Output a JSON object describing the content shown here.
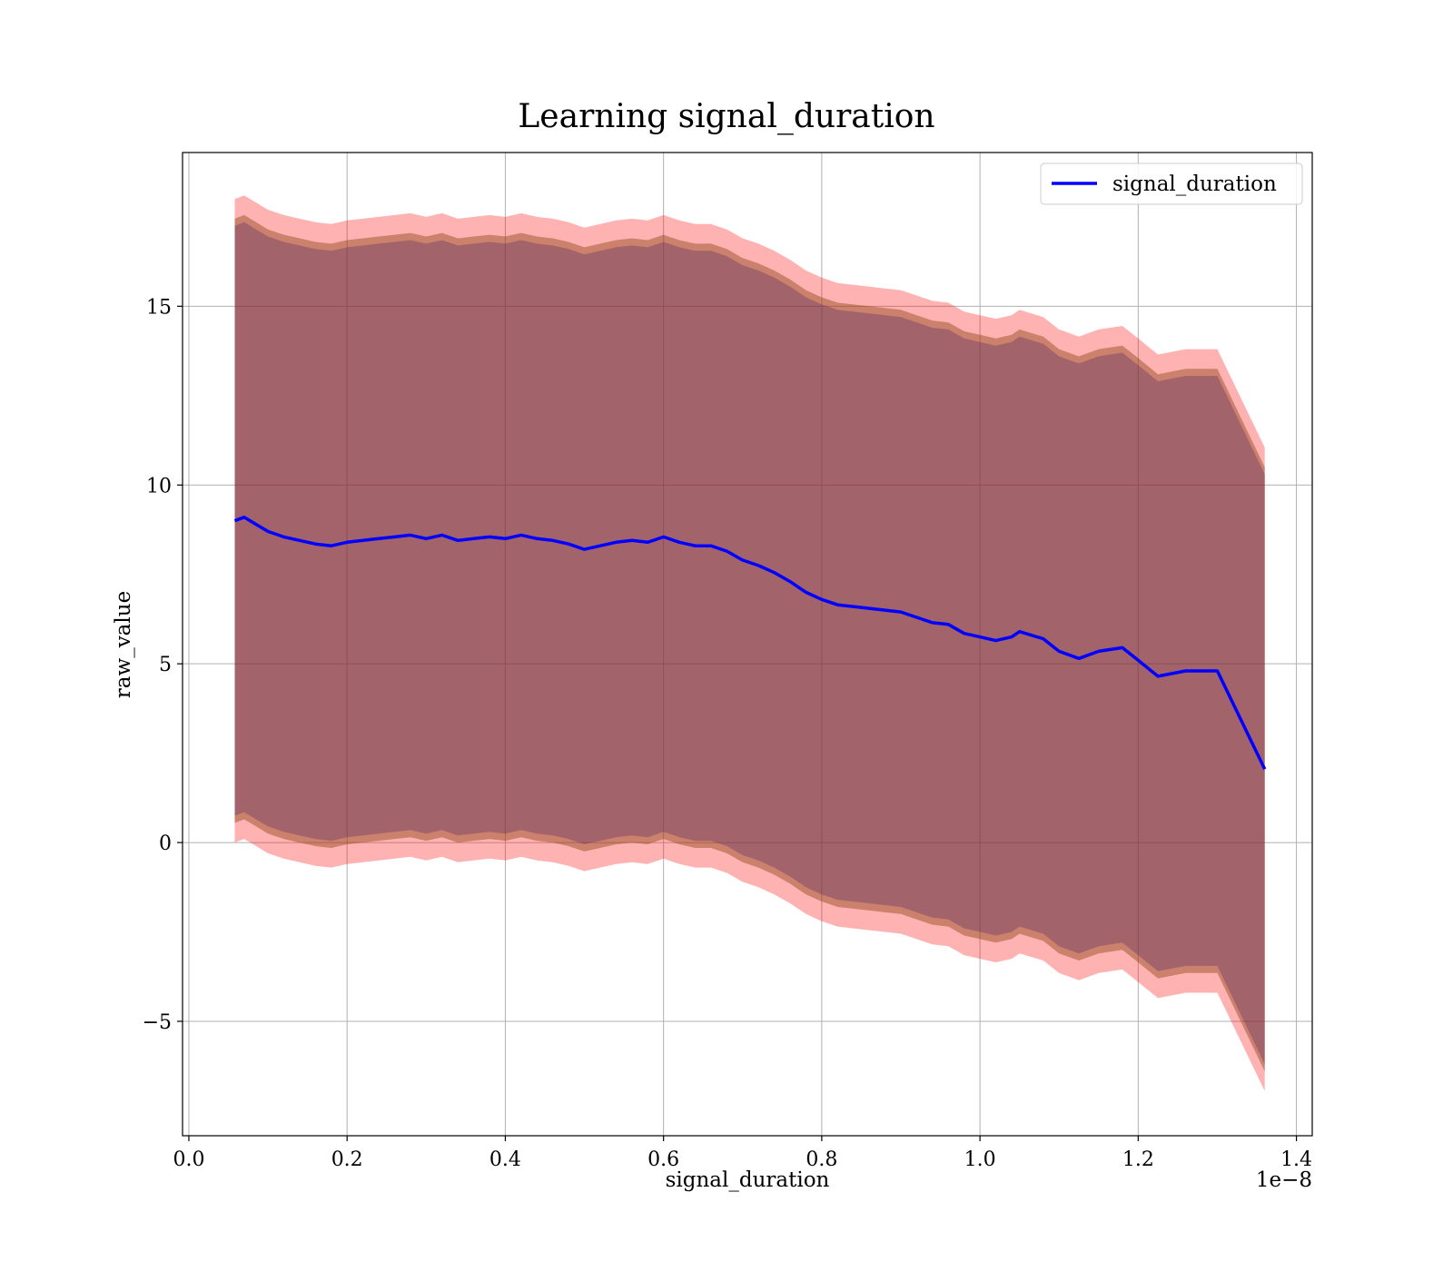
{
  "chart_data": {
    "type": "line",
    "title": "Learning signal_duration",
    "xlabel": "signal_duration",
    "ylabel": "raw_value",
    "x_offset_label": "1e−8",
    "xlim": [
      -0.008,
      1.42
    ],
    "ylim": [
      -8.2,
      19.3
    ],
    "x_ticks": [
      0.0,
      0.2,
      0.4,
      0.6,
      0.8,
      1.0,
      1.2,
      1.4
    ],
    "x_tick_labels": [
      "0.0",
      "0.2",
      "0.4",
      "0.6",
      "0.8",
      "1.0",
      "1.2",
      "1.4"
    ],
    "y_ticks": [
      -5,
      0,
      5,
      10,
      15
    ],
    "y_tick_labels": [
      "−5",
      "0",
      "5",
      "10",
      "15"
    ],
    "grid": true,
    "legend_position": "top-right",
    "series": [
      {
        "name": "signal_duration",
        "color": "#0000ff",
        "x": [
          0.058,
          0.07,
          0.085,
          0.1,
          0.12,
          0.14,
          0.16,
          0.18,
          0.2,
          0.22,
          0.24,
          0.26,
          0.28,
          0.3,
          0.32,
          0.34,
          0.36,
          0.38,
          0.4,
          0.42,
          0.44,
          0.46,
          0.48,
          0.5,
          0.52,
          0.54,
          0.56,
          0.58,
          0.6,
          0.62,
          0.64,
          0.66,
          0.68,
          0.7,
          0.72,
          0.74,
          0.76,
          0.78,
          0.8,
          0.82,
          0.84,
          0.86,
          0.88,
          0.9,
          0.92,
          0.94,
          0.96,
          0.98,
          1.0,
          1.02,
          1.04,
          1.05,
          1.08,
          1.1,
          1.125,
          1.15,
          1.18,
          1.2,
          1.225,
          1.26,
          1.3,
          1.36
        ],
        "values": [
          9.0,
          9.1,
          8.9,
          8.7,
          8.55,
          8.45,
          8.35,
          8.3,
          8.4,
          8.45,
          8.5,
          8.55,
          8.6,
          8.5,
          8.6,
          8.45,
          8.5,
          8.55,
          8.5,
          8.6,
          8.5,
          8.45,
          8.35,
          8.2,
          8.3,
          8.4,
          8.45,
          8.4,
          8.55,
          8.4,
          8.3,
          8.3,
          8.15,
          7.9,
          7.75,
          7.55,
          7.3,
          7.0,
          6.8,
          6.65,
          6.6,
          6.55,
          6.5,
          6.45,
          6.3,
          6.15,
          6.1,
          5.85,
          5.75,
          5.65,
          5.75,
          5.9,
          5.7,
          5.35,
          5.15,
          5.35,
          5.45,
          5.1,
          4.65,
          4.8,
          4.8,
          2.05
        ]
      }
    ],
    "bands": [
      {
        "color": "#ff0000",
        "opacity": 0.3,
        "half_width": 9.0
      },
      {
        "color": "#8b4513",
        "opacity": 0.45,
        "half_width": 8.45
      },
      {
        "color": "#5a2a6e",
        "opacity": 0.35,
        "half_width": 8.25
      }
    ]
  }
}
